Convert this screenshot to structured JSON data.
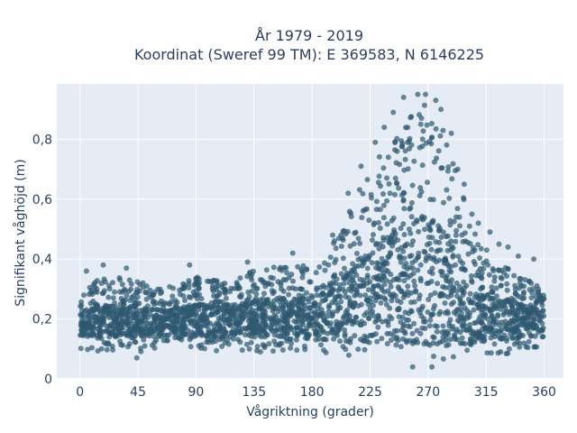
{
  "chart_data": {
    "type": "scatter",
    "title_lines": [
      "År 1979 - 2019",
      "Koordinat (Sweref 99 TM): E 369583, N 6146225"
    ],
    "xlabel": "Vågriktning (grader)",
    "ylabel": "Signifikant våghöjd (m)",
    "xlim": [
      -18,
      375
    ],
    "ylim": [
      0,
      0.985
    ],
    "x_ticks": [
      0,
      45,
      90,
      135,
      180,
      225,
      270,
      315,
      360
    ],
    "x_tick_labels": [
      "0",
      "45",
      "90",
      "135",
      "180",
      "225",
      "270",
      "315",
      "360"
    ],
    "y_ticks": [
      0,
      0.2,
      0.4,
      0.6,
      0.8
    ],
    "y_tick_labels": [
      "0",
      "0,2",
      "0,4",
      "0,6",
      "0,8"
    ],
    "grid": true,
    "marker_color": "#2e5870",
    "background_color": "#e5ecf6",
    "x_range_data": [
      0,
      360
    ],
    "envelope": {
      "x": [
        0,
        15,
        30,
        45,
        60,
        75,
        90,
        105,
        120,
        135,
        150,
        165,
        180,
        195,
        210,
        225,
        240,
        255,
        265,
        270,
        275,
        285,
        295,
        305,
        315,
        330,
        345,
        360
      ],
      "y_min": [
        0.09,
        0.09,
        0.09,
        0.09,
        0.09,
        0.09,
        0.09,
        0.09,
        0.09,
        0.09,
        0.09,
        0.08,
        0.08,
        0.08,
        0.07,
        0.07,
        0.06,
        0.05,
        0.05,
        0.05,
        0.05,
        0.06,
        0.06,
        0.07,
        0.08,
        0.08,
        0.09,
        0.09
      ],
      "y_max": [
        0.3,
        0.34,
        0.34,
        0.33,
        0.3,
        0.32,
        0.34,
        0.33,
        0.34,
        0.36,
        0.38,
        0.38,
        0.39,
        0.44,
        0.58,
        0.7,
        0.8,
        0.87,
        0.91,
        0.92,
        0.9,
        0.8,
        0.64,
        0.5,
        0.44,
        0.38,
        0.34,
        0.3
      ]
    },
    "outliers": [
      {
        "x": 5,
        "y": 0.36
      },
      {
        "x": 18,
        "y": 0.38
      },
      {
        "x": 36,
        "y": 0.37
      },
      {
        "x": 85,
        "y": 0.38
      },
      {
        "x": 130,
        "y": 0.39
      },
      {
        "x": 165,
        "y": 0.42
      },
      {
        "x": 196,
        "y": 0.48
      },
      {
        "x": 208,
        "y": 0.62
      },
      {
        "x": 218,
        "y": 0.71
      },
      {
        "x": 229,
        "y": 0.79
      },
      {
        "x": 236,
        "y": 0.84
      },
      {
        "x": 243,
        "y": 0.89
      },
      {
        "x": 251,
        "y": 0.94
      },
      {
        "x": 262,
        "y": 0.95
      },
      {
        "x": 268,
        "y": 0.95
      },
      {
        "x": 276,
        "y": 0.93
      },
      {
        "x": 280,
        "y": 0.9
      },
      {
        "x": 288,
        "y": 0.82
      },
      {
        "x": 293,
        "y": 0.7
      },
      {
        "x": 298,
        "y": 0.65
      },
      {
        "x": 304,
        "y": 0.55
      },
      {
        "x": 309,
        "y": 0.52
      },
      {
        "x": 318,
        "y": 0.49
      },
      {
        "x": 325,
        "y": 0.45
      },
      {
        "x": 332,
        "y": 0.44
      },
      {
        "x": 340,
        "y": 0.41
      },
      {
        "x": 352,
        "y": 0.4
      },
      {
        "x": 44,
        "y": 0.07
      },
      {
        "x": 258,
        "y": 0.04
      },
      {
        "x": 273,
        "y": 0.04
      }
    ]
  }
}
